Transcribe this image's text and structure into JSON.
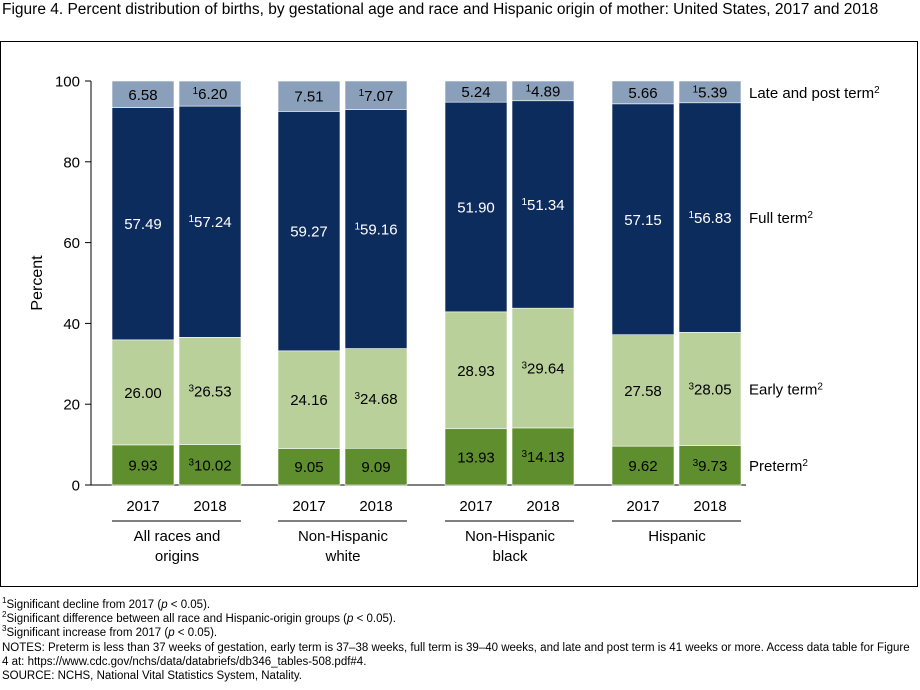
{
  "figure_title": "Figure 4. Percent distribution of births, by gestational age and race and Hispanic origin of mother: United States, 2017 and 2018",
  "chart_data": {
    "type": "bar",
    "stacked": true,
    "ylabel": "Percent",
    "ylim": [
      0,
      100
    ],
    "yticks": [
      0,
      20,
      40,
      60,
      80,
      100
    ],
    "grid": false,
    "groups": [
      {
        "label": "All races and origins",
        "label_lines": [
          "All races and",
          "origins"
        ]
      },
      {
        "label": "Non-Hispanic white",
        "label_lines": [
          "Non-Hispanic",
          "white"
        ]
      },
      {
        "label": "Non-Hispanic black",
        "label_lines": [
          "Non-Hispanic",
          "black"
        ]
      },
      {
        "label": "Hispanic",
        "label_lines": [
          "Hispanic"
        ]
      }
    ],
    "categories": [
      "2017",
      "2018",
      "2017",
      "2018",
      "2017",
      "2018",
      "2017",
      "2018"
    ],
    "series": [
      {
        "name": "Preterm",
        "sup": "2",
        "color": "#5e8e2e",
        "text_color": "#000000",
        "values": [
          9.93,
          10.02,
          9.05,
          9.09,
          13.93,
          14.13,
          9.62,
          9.73
        ],
        "labels": [
          "9.93",
          "10.02",
          "9.05",
          "9.09",
          "13.93",
          "14.13",
          "9.62",
          "9.73"
        ],
        "label_sups": [
          "",
          "3",
          "",
          "",
          "",
          "3",
          "",
          "3"
        ]
      },
      {
        "name": "Early term",
        "sup": "2",
        "color": "#b9d09a",
        "text_color": "#000000",
        "values": [
          26.0,
          26.53,
          24.16,
          24.68,
          28.93,
          29.64,
          27.58,
          28.05
        ],
        "labels": [
          "26.00",
          "26.53",
          "24.16",
          "24.68",
          "28.93",
          "29.64",
          "27.58",
          "28.05"
        ],
        "label_sups": [
          "",
          "3",
          "",
          "3",
          "",
          "3",
          "",
          "3"
        ]
      },
      {
        "name": "Full term",
        "sup": "2",
        "color": "#0d2c5e",
        "text_color": "#ffffff",
        "values": [
          57.49,
          57.24,
          59.27,
          59.16,
          51.9,
          51.34,
          57.15,
          56.83
        ],
        "labels": [
          "57.49",
          "57.24",
          "59.27",
          "59.16",
          "51.90",
          "51.34",
          "57.15",
          "56.83"
        ],
        "label_sups": [
          "",
          "1",
          "",
          "1",
          "",
          "1",
          "",
          "1"
        ]
      },
      {
        "name": "Late and post term",
        "sup": "2",
        "color": "#8a9fba",
        "text_color": "#000000",
        "values": [
          6.58,
          6.2,
          7.51,
          7.07,
          5.24,
          4.89,
          5.66,
          5.39
        ],
        "labels": [
          "6.58",
          "6.20",
          "7.51",
          "7.07",
          "5.24",
          "4.89",
          "5.66",
          "5.39"
        ],
        "label_sups": [
          "",
          "1",
          "",
          "1",
          "",
          "1",
          "",
          "1"
        ]
      }
    ]
  },
  "notes": [
    {
      "sup": "1",
      "pre": "Significant decline from 2017 (",
      "em": "p",
      "post": " < 0.05)."
    },
    {
      "sup": "2",
      "pre": "Significant difference between all race and Hispanic-origin groups (",
      "em": "p",
      "post": " < 0.05)."
    },
    {
      "sup": "3",
      "pre": "Significant increase from 2017 (",
      "em": "p",
      "post": " < 0.05)."
    },
    {
      "sup": "",
      "pre": "NOTES: Preterm is less than 37 weeks of gestation, early term is 37–38 weeks, full term is 39–40 weeks, and late and post term is 41 weeks or more. Access data table for Figure 4 at: https://www.cdc.gov/nchs/data/databriefs/db346_tables-508.pdf#4.",
      "em": "",
      "post": ""
    },
    {
      "sup": "",
      "pre": "SOURCE: NCHS, National Vital Statistics System, Natality.",
      "em": "",
      "post": ""
    }
  ]
}
